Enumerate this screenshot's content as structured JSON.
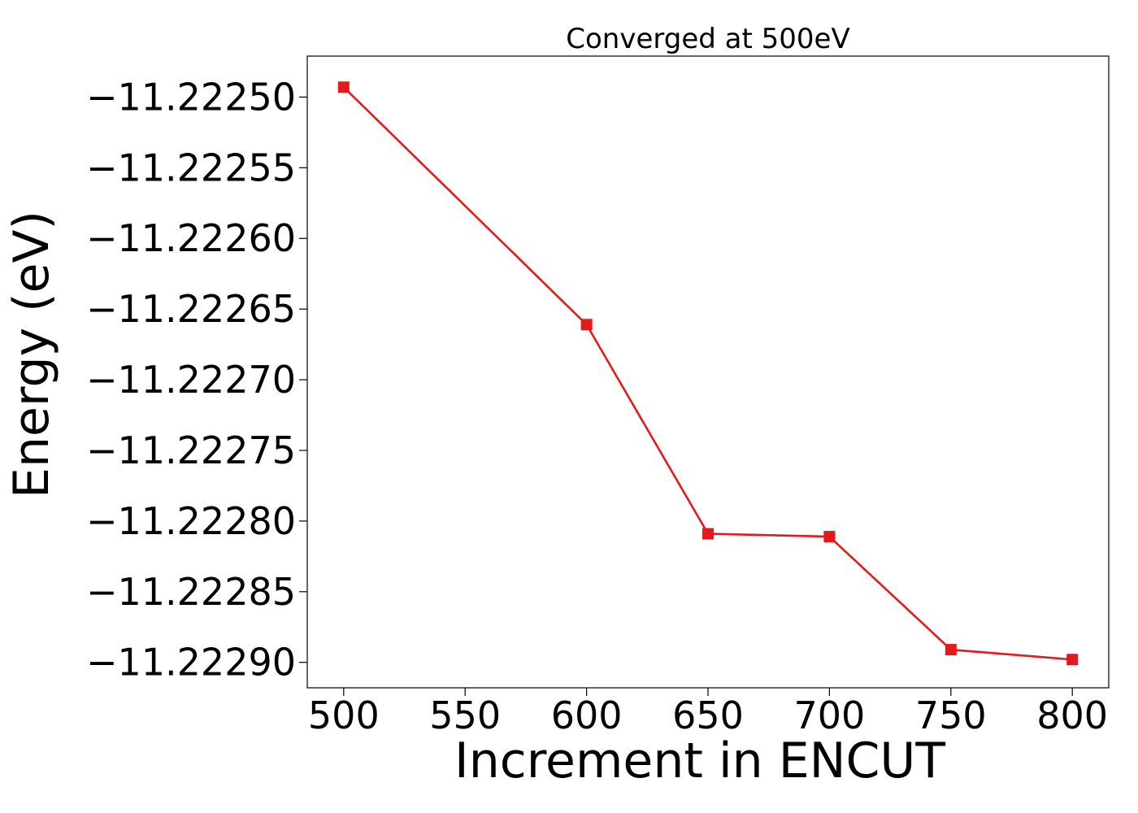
{
  "chart_data": {
    "type": "line",
    "title": "Converged at 500eV",
    "xlabel": "Increment in ENCUT",
    "ylabel": "Energy (eV)",
    "x": [
      500,
      600,
      650,
      700,
      750,
      800
    ],
    "series": [
      {
        "values": [
          -11.222493,
          -11.222661,
          -11.222809,
          -11.222811,
          -11.222891,
          -11.222898
        ],
        "color": "#e31a1c",
        "marker": "square"
      }
    ],
    "xlim": [
      485,
      815
    ],
    "ylim": [
      -11.222918,
      -11.222471
    ],
    "x_ticks": [
      500,
      550,
      600,
      650,
      700,
      750,
      800
    ],
    "x_tick_labels": [
      "500",
      "550",
      "600",
      "650",
      "700",
      "750",
      "800"
    ],
    "y_ticks": [
      -11.2225,
      -11.22255,
      -11.2226,
      -11.22265,
      -11.2227,
      -11.22275,
      -11.2228,
      -11.22285,
      -11.2229
    ],
    "y_tick_labels": [
      "−11.22250",
      "−11.22255",
      "−11.22260",
      "−11.22265",
      "−11.22270",
      "−11.22275",
      "−11.22280",
      "−11.22285",
      "−11.22290"
    ],
    "grid": false,
    "legend": "none"
  }
}
